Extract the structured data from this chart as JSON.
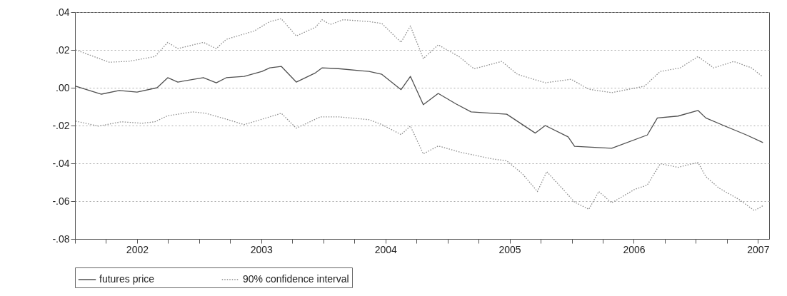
{
  "chart_data": {
    "type": "line",
    "xlim": [
      2002,
      2007.59
    ],
    "ylim": [
      -0.08,
      0.04
    ],
    "xticks": [
      {
        "value": 2002,
        "label": null
      },
      {
        "value": 2002.25,
        "label": null
      },
      {
        "value": 2002.5,
        "label": "2002"
      },
      {
        "value": 2002.75,
        "label": null
      },
      {
        "value": 2003,
        "label": null
      },
      {
        "value": 2003.25,
        "label": null
      },
      {
        "value": 2003.5,
        "label": "2003"
      },
      {
        "value": 2003.75,
        "label": null
      },
      {
        "value": 2004,
        "label": null
      },
      {
        "value": 2004.25,
        "label": null
      },
      {
        "value": 2004.5,
        "label": "2004"
      },
      {
        "value": 2004.75,
        "label": null
      },
      {
        "value": 2005,
        "label": null
      },
      {
        "value": 2005.25,
        "label": null
      },
      {
        "value": 2005.5,
        "label": "2005"
      },
      {
        "value": 2005.75,
        "label": null
      },
      {
        "value": 2006,
        "label": null
      },
      {
        "value": 2006.25,
        "label": null
      },
      {
        "value": 2006.5,
        "label": "2006"
      },
      {
        "value": 2006.75,
        "label": null
      },
      {
        "value": 2007,
        "label": null
      },
      {
        "value": 2007.25,
        "label": null
      },
      {
        "value": 2007.5,
        "label": "2007"
      }
    ],
    "yticks": [
      {
        "value": 0.04,
        "label": ".04"
      },
      {
        "value": 0.02,
        "label": ".02"
      },
      {
        "value": 0,
        "label": ".00"
      },
      {
        "value": -0.02,
        "label": "-.02"
      },
      {
        "value": -0.04,
        "label": "-.04"
      },
      {
        "value": -0.06,
        "label": "-.06"
      },
      {
        "value": -0.08,
        "label": "-.08"
      }
    ],
    "grid": "y",
    "legend": "bottom",
    "series": [
      {
        "name": "futures price",
        "color": "#505050",
        "line_style": "solid",
        "x": [
          2002.006,
          2002.213,
          2002.356,
          2002.5,
          2002.661,
          2002.747,
          2002.828,
          2003.034,
          2003.138,
          2003.218,
          2003.362,
          2003.506,
          2003.569,
          2003.661,
          2003.782,
          2003.937,
          2003.989,
          2004.121,
          2004.368,
          2004.471,
          2004.626,
          2004.701,
          2004.805,
          2004.925,
          2005.069,
          2005.19,
          2005.477,
          2005.707,
          2005.787,
          2005.971,
          2006.023,
          2006.322,
          2006.609,
          2006.69,
          2006.856,
          2007.017,
          2007.08,
          2007.224,
          2007.408,
          2007.54
        ],
        "values": [
          0.0008,
          -0.0034,
          -0.0015,
          -0.0023,
          0,
          0.0053,
          0.003,
          0.0053,
          0.0026,
          0.0053,
          0.006,
          0.0086,
          0.0105,
          0.0113,
          0.003,
          0.0079,
          0.0105,
          0.0101,
          0.0086,
          0.0071,
          -0.001,
          0.006,
          -0.009,
          -0.003,
          -0.0086,
          -0.0128,
          -0.014,
          -0.024,
          -0.02,
          -0.026,
          -0.031,
          -0.032,
          -0.025,
          -0.016,
          -0.015,
          -0.012,
          -0.016,
          -0.02,
          -0.025,
          -0.029
        ]
      },
      {
        "name": "90% confidence interval",
        "color": "#8a8a8a",
        "line_style": "dotted",
        "x": [
          2002.006,
          2002.276,
          2002.437,
          2002.644,
          2002.747,
          2002.828,
          2003.034,
          2003.138,
          2003.218,
          2003.339,
          2003.443,
          2003.569,
          2003.661,
          2003.782,
          2003.937,
          2003.989,
          2004.057,
          2004.161,
          2004.368,
          2004.471,
          2004.626,
          2004.701,
          2004.805,
          2004.925,
          2005.092,
          2005.213,
          2005.437,
          2005.563,
          2005.787,
          2005.994,
          2006.138,
          2006.322,
          2006.586,
          2006.713,
          2006.874,
          2007.017,
          2007.144,
          2007.305,
          2007.448,
          2007.534
        ],
        "values": [
          0.02,
          0.0135,
          0.014,
          0.0165,
          0.024,
          0.0207,
          0.024,
          0.0207,
          0.0256,
          0.028,
          0.03,
          0.035,
          0.0365,
          0.0274,
          0.032,
          0.036,
          0.0335,
          0.036,
          0.035,
          0.034,
          0.024,
          0.0327,
          0.0154,
          0.0227,
          0.0165,
          0.01,
          0.0139,
          0.0071,
          0.0026,
          0.0045,
          -0.0008,
          -0.0026,
          0.0008,
          0.0086,
          0.0105,
          0.0165,
          0.0105,
          0.0139,
          0.0105,
          0.006
        ]
      },
      {
        "color": "#8a8a8a",
        "line_style": "dotted",
        "x": [
          2002.006,
          2002.19,
          2002.374,
          2002.54,
          2002.644,
          2002.747,
          2002.948,
          2003.052,
          2003.195,
          2003.362,
          2003.569,
          2003.661,
          2003.782,
          2003.977,
          2004.121,
          2004.368,
          2004.471,
          2004.626,
          2004.701,
          2004.805,
          2004.925,
          2005.109,
          2005.356,
          2005.477,
          2005.603,
          2005.724,
          2005.799,
          2005.931,
          2006.023,
          2006.138,
          2006.218,
          2006.322,
          2006.506,
          2006.609,
          2006.713,
          2006.856,
          2007.017,
          2007.08,
          2007.184,
          2007.345,
          2007.471,
          2007.54
        ],
        "values": [
          -0.0177,
          -0.0203,
          -0.018,
          -0.0188,
          -0.018,
          -0.0148,
          -0.0128,
          -0.0135,
          -0.0162,
          -0.0195,
          -0.0154,
          -0.0135,
          -0.0214,
          -0.0154,
          -0.0154,
          -0.0169,
          -0.0195,
          -0.0248,
          -0.0203,
          -0.035,
          -0.0308,
          -0.0342,
          -0.0376,
          -0.0387,
          -0.0455,
          -0.0549,
          -0.0444,
          -0.0538,
          -0.0605,
          -0.0643,
          -0.0549,
          -0.0609,
          -0.0538,
          -0.0515,
          -0.0402,
          -0.0421,
          -0.0395,
          -0.047,
          -0.053,
          -0.059,
          -0.065,
          -0.0624
        ]
      }
    ]
  }
}
